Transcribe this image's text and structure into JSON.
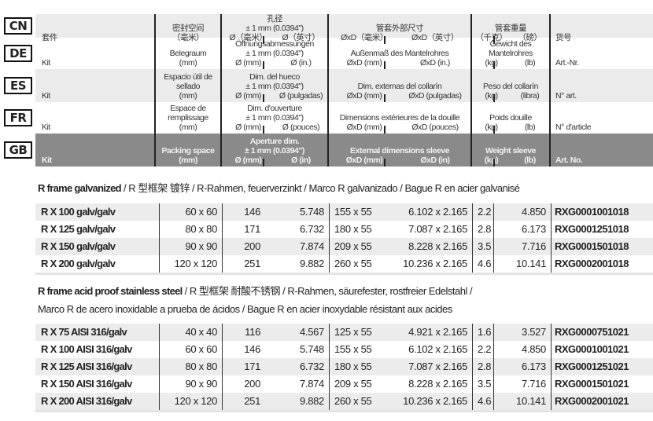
{
  "languages": [
    "CN",
    "DE",
    "ES",
    "FR",
    "GB"
  ],
  "header": {
    "CN": {
      "kit": "套件",
      "packing": [
        "密封空间",
        "（毫米）"
      ],
      "aperture": [
        "孔径",
        "± 1 mm (0.0394\")"
      ],
      "aperture_units": [
        "Ø（毫米）",
        "Ø（英寸）"
      ],
      "external": [
        "管套外部尺寸"
      ],
      "external_units": [
        "ØxD（毫米）",
        "ØxD（英寸）"
      ],
      "weight": [
        "管套重量"
      ],
      "weight_units": [
        "（千克）",
        "（磅）"
      ],
      "art": "货号"
    },
    "DE": {
      "kit": "Kit",
      "packing": [
        "Belegraum",
        "(mm)"
      ],
      "aperture": [
        "Öffnungsabmessungen",
        "± 1 mm (0.0394\")"
      ],
      "aperture_units": [
        "Ø (mm)",
        "Ø (in.)"
      ],
      "external": [
        "Außenmaß des Mantelrohres"
      ],
      "external_units": [
        "ØxD (mm)",
        "ØxD (in.)"
      ],
      "weight": [
        "Gewicht des",
        "Mantelrohres"
      ],
      "weight_units": [
        "(kg)",
        "(lb)"
      ],
      "art": "Art.-Nr."
    },
    "ES": {
      "kit": "Kit",
      "packing": [
        "Espacio útil de",
        "sellado",
        "(mm)"
      ],
      "aperture": [
        "Dim. del hueco",
        "± 1 mm (0.0394\")"
      ],
      "aperture_units": [
        "Ø (mm)",
        "Ø (pulgadas)"
      ],
      "external": [
        "Dim. externas del collarín"
      ],
      "external_units": [
        "ØxD (mm)",
        "ØxD (pulgadas)"
      ],
      "weight": [
        "Peso del collarín"
      ],
      "weight_units": [
        "(kg)",
        "(libra)"
      ],
      "art": "N° art."
    },
    "FR": {
      "kit": "Kit",
      "packing": [
        "Espace de",
        "remplissage",
        "(mm)"
      ],
      "aperture": [
        "Dim. d'ouverture",
        "± 1 mm (0.0394\")"
      ],
      "aperture_units": [
        "Ø (mm)",
        "Ø (pouces)"
      ],
      "external": [
        "Dimensions extérieures de la douille"
      ],
      "external_units": [
        "ØxD (mm)",
        "ØxD (pouces)"
      ],
      "weight": [
        "Poids douille"
      ],
      "weight_units": [
        "(kg)",
        "(lb)"
      ],
      "art": "N° d'article"
    },
    "GB": {
      "kit": "Kit",
      "packing": [
        "Packing space",
        "(mm)"
      ],
      "aperture": [
        "Aperture dim.",
        "± 1 mm (0.0394\")"
      ],
      "aperture_units": [
        "Ø (mm)",
        "Ø (in)"
      ],
      "external": [
        "External dimensions sleeve"
      ],
      "external_units": [
        "ØxD (mm)",
        "ØxD (in)"
      ],
      "weight": [
        "Weight sleeve"
      ],
      "weight_units": [
        "(kg)",
        "(lb)"
      ],
      "art": "Art. No."
    }
  },
  "section1": {
    "title_bold": "R frame galvanized",
    "title_rest": " / R 型框架  镀锌 / R-Rahmen, feuerverzinkt / Marco R galvanizado / Bague R en acier galvanisé"
  },
  "rows1": [
    [
      "R X 100 galv/galv",
      "60 x 60",
      "146",
      "5.748",
      "155 x 55",
      "6.102 x 2.165",
      "2.2",
      "4.850",
      "RXG0001001018"
    ],
    [
      "R X 125 galv/galv",
      "80 x 80",
      "171",
      "6.732",
      "180 x 55",
      "7.087 x 2.165",
      "2.8",
      "6.173",
      "RXG0001251018"
    ],
    [
      "R X 150 galv/galv",
      "90 x 90",
      "200",
      "7.874",
      "209 x 55",
      "8.228 x 2.165",
      "3.5",
      "7.716",
      "RXG0001501018"
    ],
    [
      "R X 200 galv/galv",
      "120 x 120",
      "251",
      "9.882",
      "260 x 55",
      "10.236 x 2.165",
      "4.6",
      "10.141",
      "RXG0002001018"
    ]
  ],
  "section2": {
    "title_bold": "R frame acid proof stainless steel",
    "title_rest": " / R 型框架  耐酸不锈钢  / R-Rahmen, säurefester, rostfreier Edelstahl /",
    "line2": "Marco R de acero inoxidable a prueba de ácidos / Bague R en acier inoxydable résistant aux acides"
  },
  "rows2": [
    [
      "R X 75 AISI 316/galv",
      "40 x 40",
      "116",
      "4.567",
      "125 x 55",
      "4.921 x 2.165",
      "1.6",
      "3.527",
      "RXG0000751021"
    ],
    [
      "R X 100 AISI 316/galv",
      "60 x 60",
      "146",
      "5.748",
      "155 x 55",
      "6.102 x 2.165",
      "2.2",
      "4.850",
      "RXG0001001021"
    ],
    [
      "R X 125 AISI 316/galv",
      "80 x 80",
      "171",
      "6.732",
      "180 x 55",
      "7.087 x 2.165",
      "2.8",
      "6.173",
      "RXG0001251021"
    ],
    [
      "R X 150 AISI 316/galv",
      "90 x 90",
      "200",
      "7.874",
      "209 x 55",
      "8.228 x 2.165",
      "3.5",
      "7.716",
      "RXG0001501021"
    ],
    [
      "R X 200 AISI 316/galv",
      "120 x 120",
      "251",
      "9.882",
      "260 x 55",
      "10.236 x 2.165",
      "4.6",
      "10.141",
      "RXG0002001021"
    ]
  ]
}
